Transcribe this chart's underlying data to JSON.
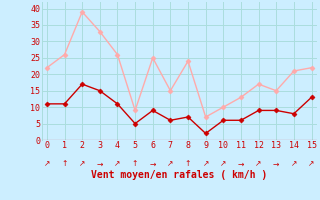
{
  "x": [
    0,
    1,
    2,
    3,
    4,
    5,
    6,
    7,
    8,
    9,
    10,
    11,
    12,
    13,
    14,
    15
  ],
  "moyen": [
    11,
    11,
    17,
    15,
    11,
    5,
    9,
    6,
    7,
    2,
    6,
    6,
    9,
    9,
    8,
    13
  ],
  "rafales": [
    22,
    26,
    39,
    33,
    26,
    9,
    25,
    15,
    24,
    7,
    10,
    13,
    17,
    15,
    21,
    22
  ],
  "color_moyen": "#cc0000",
  "color_rafales": "#ffaaaa",
  "bg_color": "#cceeff",
  "grid_color": "#aadddd",
  "xlabel": "Vent moyen/en rafales ( km/h )",
  "ylim": [
    0,
    42
  ],
  "yticks": [
    0,
    5,
    10,
    15,
    20,
    25,
    30,
    35,
    40
  ],
  "xlim": [
    -0.3,
    15.3
  ],
  "xlabel_color": "#cc0000",
  "tick_color": "#cc0000",
  "arrows": [
    "↗",
    "↑",
    "↗",
    "→",
    "↗",
    "↑",
    "→",
    "↗",
    "↑",
    "↗",
    "↗",
    "→",
    "↗",
    "→",
    "↗",
    "↗"
  ]
}
